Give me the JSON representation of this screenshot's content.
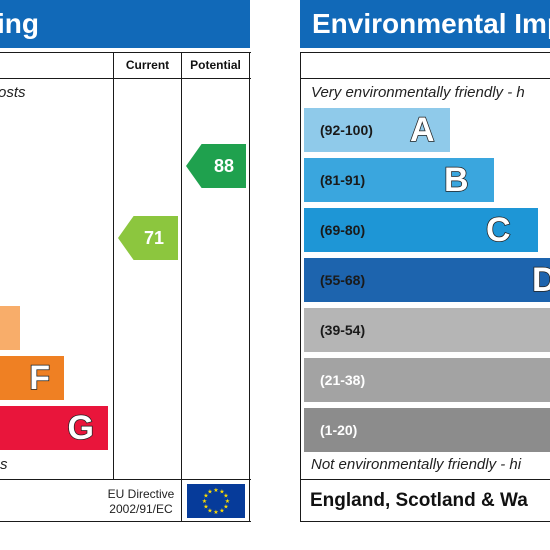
{
  "energy": {
    "title": "ing",
    "col_current": "Current",
    "col_potential": "Potential",
    "top_note": "osts",
    "bottom_note": "s",
    "bands": [
      {
        "letter": "F",
        "color": "#ef8023"
      },
      {
        "letter": "G",
        "color": "#e9153b"
      }
    ],
    "current": {
      "value": "71",
      "color": "#8cc63e"
    },
    "potential": {
      "value": "88",
      "color": "#1fa14e"
    },
    "eu_line1": "EU Directive",
    "eu_line2": "2002/91/EC"
  },
  "environmental": {
    "title": "Environmental Imp",
    "top_note": "Very environmentally friendly - h",
    "bottom_note": "Not environmentally friendly - hi",
    "region": "England, Scotland & Wa",
    "bands": [
      {
        "range": "(92-100)",
        "letter": "A",
        "color": "#8fcaea"
      },
      {
        "range": "(81-91)",
        "letter": "B",
        "color": "#3aa6de"
      },
      {
        "range": "(69-80)",
        "letter": "C",
        "color": "#1e96d6"
      },
      {
        "range": "(55-68)",
        "letter": "D",
        "color": "#1d64ae"
      },
      {
        "range": "(39-54)",
        "letter": "",
        "color": "#b5b5b5"
      },
      {
        "range": "(21-38)",
        "letter": "",
        "color": "#a3a3a3"
      },
      {
        "range": "(1-20)",
        "letter": "",
        "color": "#8c8c8c"
      }
    ]
  },
  "colors": {
    "header": "#1169b8",
    "frame": "#1a1a1a",
    "eu_flag": "#063b9a",
    "eu_stars": "#ffdd00"
  }
}
